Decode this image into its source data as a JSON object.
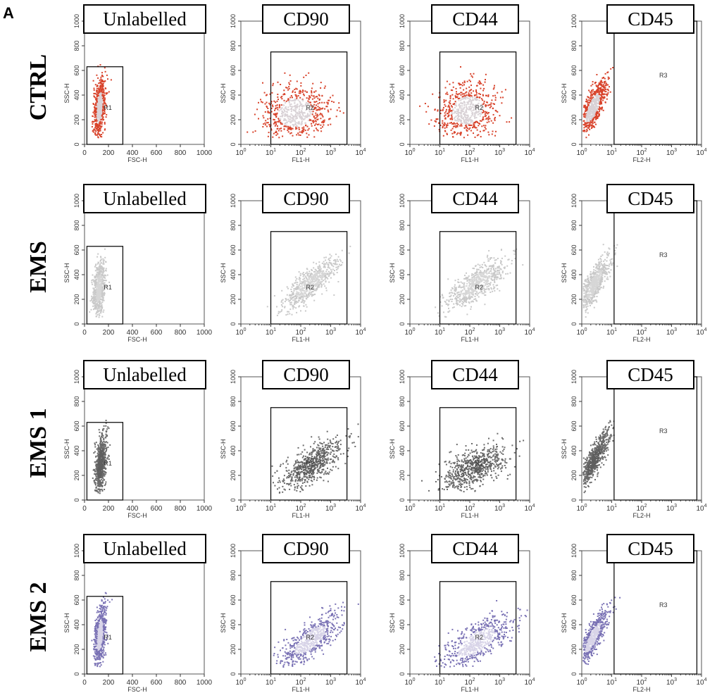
{
  "figure_label": "A",
  "chart_data": {
    "type": "scatter",
    "rows": [
      {
        "name": "CTRL",
        "color": "#d8432b",
        "core_color": "#d9d2d6"
      },
      {
        "name": "EMS",
        "color": "#c9c9c9",
        "core_color": "#d6d6d6"
      },
      {
        "name": "EMS 1",
        "color": "#6a6a6a",
        "core_color": "#5e5e5e"
      },
      {
        "name": "EMS 2",
        "color": "#7a72b5",
        "core_color": "#d8d4e8"
      }
    ],
    "panels": [
      {
        "label": "Unlabelled",
        "xlabel": "FSC-H",
        "ylabel": "SSC-H",
        "xscale": "linear",
        "xlim": [
          0,
          1000
        ],
        "ylim": [
          0,
          1000
        ],
        "xticks": [
          "0",
          "200",
          "400",
          "600",
          "800",
          "1000"
        ],
        "yticks": [
          "0",
          "200",
          "400",
          "600",
          "800",
          "1000"
        ],
        "gate": {
          "name": "R1",
          "x": [
            20,
            320
          ],
          "y": [
            0,
            630
          ]
        }
      },
      {
        "label": "CD90",
        "xlabel": "FL1-H",
        "ylabel": "SSC-H",
        "xscale": "log",
        "xlim": [
          1,
          10000
        ],
        "ylim": [
          0,
          1000
        ],
        "xticks": [
          "0",
          "1",
          "2",
          "3",
          "4"
        ],
        "yticks": [
          "0",
          "200",
          "400",
          "600",
          "800",
          "1000"
        ],
        "gate": {
          "name": "R2",
          "x": [
            10,
            3500
          ],
          "y": [
            0,
            750
          ]
        }
      },
      {
        "label": "CD44",
        "xlabel": "FL1-H",
        "ylabel": "SSC-H",
        "xscale": "log",
        "xlim": [
          1,
          10000
        ],
        "ylim": [
          0,
          1000
        ],
        "xticks": [
          "0",
          "1",
          "2",
          "3",
          "4"
        ],
        "yticks": [
          "0",
          "200",
          "400",
          "600",
          "800",
          "1000"
        ],
        "gate": {
          "name": "R2",
          "x": [
            10,
            3500
          ],
          "y": [
            0,
            750
          ]
        }
      },
      {
        "label": "CD45",
        "xlabel": "FL2-H",
        "ylabel": "SSC-H",
        "xscale": "log",
        "xlim": [
          1,
          10000
        ],
        "ylim": [
          0,
          1000
        ],
        "xticks": [
          "0",
          "1",
          "2",
          "3",
          "4"
        ],
        "yticks": [
          "0",
          "200",
          "400",
          "600",
          "800",
          "1000"
        ],
        "gate": {
          "name": "R3",
          "x": [
            12,
            7000
          ],
          "y": [
            0,
            1000
          ]
        }
      }
    ],
    "tick_base": "10"
  }
}
